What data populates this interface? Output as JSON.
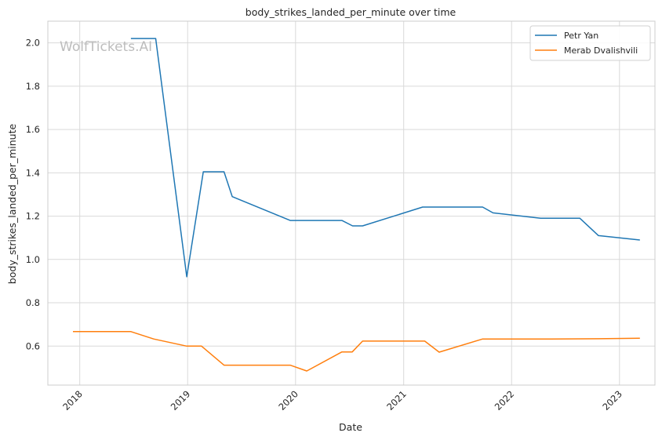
{
  "chart_data": {
    "type": "line",
    "title": "body_strikes_landed_per_minute over time",
    "xlabel": "Date",
    "ylabel": "body_strikes_landed_per_minute",
    "watermark": "WolfTickets.AI",
    "x_type": "date",
    "xlim": [
      "2017-09-15",
      "2023-05-01"
    ],
    "ylim": [
      0.42,
      2.1
    ],
    "x_ticks": [
      {
        "date": "2018-01-01",
        "label": "2018"
      },
      {
        "date": "2019-01-01",
        "label": "2019"
      },
      {
        "date": "2020-01-01",
        "label": "2020"
      },
      {
        "date": "2021-01-01",
        "label": "2021"
      },
      {
        "date": "2022-01-01",
        "label": "2022"
      },
      {
        "date": "2023-01-01",
        "label": "2023"
      }
    ],
    "y_ticks": [
      {
        "value": 0.6,
        "label": "0.6"
      },
      {
        "value": 0.8,
        "label": "0.8"
      },
      {
        "value": 1.0,
        "label": "1.0"
      },
      {
        "value": 1.2,
        "label": "1.2"
      },
      {
        "value": 1.4,
        "label": "1.4"
      },
      {
        "value": 1.6,
        "label": "1.6"
      },
      {
        "value": 1.8,
        "label": "1.8"
      },
      {
        "value": 2.0,
        "label": "2.0"
      }
    ],
    "grid": true,
    "legend_position": "top-right",
    "series": [
      {
        "name": "Petr Yan",
        "color": "#1f77b4",
        "points": [
          {
            "x": "2018-06-23",
            "y": 2.02
          },
          {
            "x": "2018-09-15",
            "y": 2.02
          },
          {
            "x": "2018-12-29",
            "y": 0.92
          },
          {
            "x": "2019-02-23",
            "y": 1.405
          },
          {
            "x": "2019-05-04",
            "y": 1.405
          },
          {
            "x": "2019-06-01",
            "y": 1.29
          },
          {
            "x": "2019-12-14",
            "y": 1.18
          },
          {
            "x": "2020-06-06",
            "y": 1.18
          },
          {
            "x": "2020-07-12",
            "y": 1.155
          },
          {
            "x": "2020-08-15",
            "y": 1.155
          },
          {
            "x": "2021-03-06",
            "y": 1.242
          },
          {
            "x": "2021-09-25",
            "y": 1.242
          },
          {
            "x": "2021-10-30",
            "y": 1.215
          },
          {
            "x": "2022-04-09",
            "y": 1.19
          },
          {
            "x": "2022-08-20",
            "y": 1.19
          },
          {
            "x": "2022-10-22",
            "y": 1.11
          },
          {
            "x": "2023-03-11",
            "y": 1.09
          }
        ]
      },
      {
        "name": "Merab Dvalishvili",
        "color": "#ff7f0e",
        "points": [
          {
            "x": "2017-12-09",
            "y": 0.667
          },
          {
            "x": "2018-06-23",
            "y": 0.667
          },
          {
            "x": "2018-09-08",
            "y": 0.633
          },
          {
            "x": "2018-12-29",
            "y": 0.6
          },
          {
            "x": "2019-02-17",
            "y": 0.6
          },
          {
            "x": "2019-05-04",
            "y": 0.512
          },
          {
            "x": "2019-12-14",
            "y": 0.512
          },
          {
            "x": "2020-02-08",
            "y": 0.485
          },
          {
            "x": "2020-06-06",
            "y": 0.573
          },
          {
            "x": "2020-07-11",
            "y": 0.573
          },
          {
            "x": "2020-08-15",
            "y": 0.623
          },
          {
            "x": "2021-03-13",
            "y": 0.623
          },
          {
            "x": "2021-05-01",
            "y": 0.572
          },
          {
            "x": "2021-09-25",
            "y": 0.633
          },
          {
            "x": "2022-05-14",
            "y": 0.633
          },
          {
            "x": "2022-10-22",
            "y": 0.634
          },
          {
            "x": "2023-03-11",
            "y": 0.636
          }
        ]
      }
    ]
  }
}
